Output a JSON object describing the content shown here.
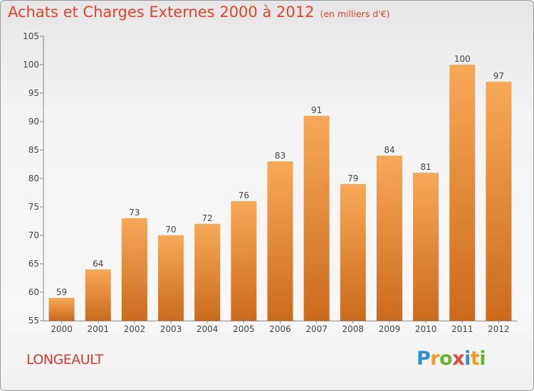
{
  "header": {
    "title": "Achats et Charges Externes 2000 à 2012",
    "subtitle": "(en milliers d'€)"
  },
  "commune": "LONGEAULT",
  "brand": {
    "letters": [
      "P",
      "r",
      "o",
      "x",
      "i",
      "t",
      "i"
    ],
    "colors": [
      "#2f8fd5",
      "#f39c1b",
      "#66b32e",
      "#e8483a",
      "#2f8fd5",
      "#f39c1b",
      "#66b32e"
    ]
  },
  "colors": {
    "bar_top": "#f7a957",
    "bar_bottom": "#cc6a1c",
    "text": "#444444",
    "title": "#e3422b"
  },
  "chart_data": {
    "type": "bar",
    "categories": [
      "2000",
      "2001",
      "2002",
      "2003",
      "2004",
      "2005",
      "2006",
      "2007",
      "2008",
      "2009",
      "2010",
      "2011",
      "2012"
    ],
    "values": [
      59,
      64,
      73,
      70,
      72,
      76,
      83,
      91,
      79,
      84,
      81,
      100,
      97
    ],
    "ylim": [
      55,
      105
    ],
    "yticks": [
      55,
      60,
      65,
      70,
      75,
      80,
      85,
      90,
      95,
      100,
      105
    ],
    "grid": false,
    "data_labels": true
  }
}
